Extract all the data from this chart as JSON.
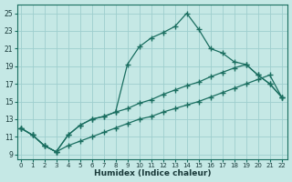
{
  "xlabel": "Humidex (Indice chaleur)",
  "bg_color": "#c5e8e5",
  "grid_color": "#9ecece",
  "line_color": "#1a6e60",
  "xlim": [
    -0.3,
    22.5
  ],
  "ylim": [
    8.5,
    26.0
  ],
  "xticks": [
    0,
    1,
    2,
    3,
    4,
    5,
    6,
    7,
    8,
    9,
    10,
    11,
    12,
    13,
    14,
    15,
    16,
    17,
    18,
    19,
    20,
    21,
    22
  ],
  "yticks": [
    9,
    11,
    13,
    15,
    17,
    19,
    21,
    23,
    25
  ],
  "curve1_x": [
    0,
    1,
    2,
    3,
    4,
    5,
    6,
    7,
    8,
    9,
    10,
    11,
    12,
    13,
    14,
    15,
    16,
    17,
    18,
    19,
    20,
    21,
    22
  ],
  "curve1_y": [
    12.0,
    11.2,
    10.0,
    9.3,
    11.2,
    12.3,
    13.0,
    13.3,
    13.8,
    19.2,
    21.2,
    22.2,
    22.8,
    23.5,
    25.0,
    23.2,
    21.0,
    20.5,
    19.5,
    19.2,
    18.0,
    17.0,
    15.5
  ],
  "curve2_x": [
    0,
    1,
    2,
    3,
    4,
    5,
    6,
    7,
    8,
    9,
    10,
    11,
    12,
    13,
    14,
    15,
    16,
    17,
    18,
    19,
    20,
    21,
    22
  ],
  "curve2_y": [
    12.0,
    11.2,
    10.0,
    9.3,
    11.2,
    12.3,
    13.0,
    13.3,
    13.8,
    14.2,
    14.8,
    15.2,
    15.8,
    16.3,
    16.8,
    17.2,
    17.8,
    18.3,
    18.8,
    19.2,
    18.0,
    17.0,
    15.5
  ],
  "curve3_x": [
    0,
    1,
    2,
    3,
    4,
    5,
    6,
    7,
    8,
    9,
    10,
    11,
    12,
    13,
    14,
    15,
    16,
    17,
    18,
    19,
    20,
    21,
    22
  ],
  "curve3_y": [
    12.0,
    11.2,
    10.0,
    9.3,
    10.0,
    10.5,
    11.0,
    11.5,
    12.0,
    12.5,
    13.0,
    13.3,
    13.8,
    14.2,
    14.6,
    15.0,
    15.5,
    16.0,
    16.5,
    17.0,
    17.5,
    18.0,
    15.5
  ]
}
